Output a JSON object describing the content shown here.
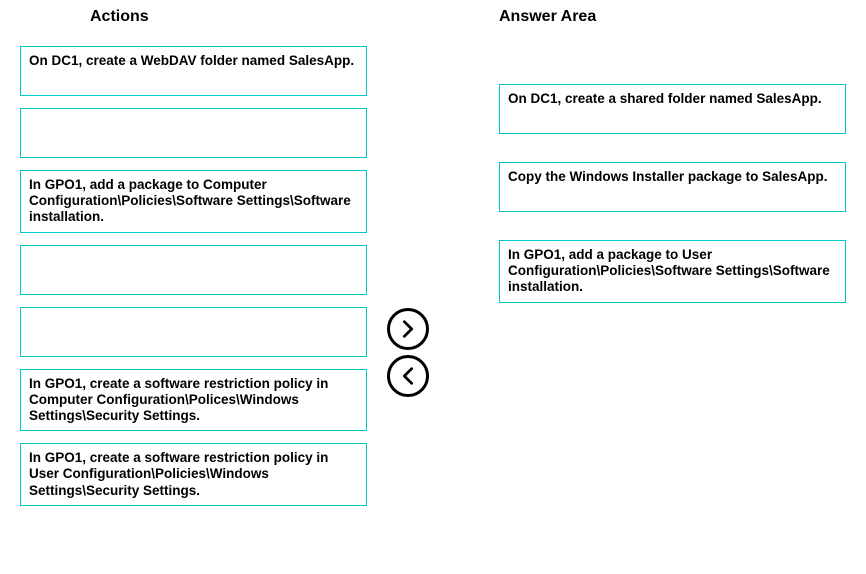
{
  "headers": {
    "actions": "Actions",
    "answer": "Answer Area"
  },
  "actions_items": [
    {
      "text": "On DC1, create a WebDAV folder named SalesApp.",
      "empty": false
    },
    {
      "text": "",
      "empty": true
    },
    {
      "text": "In GPO1, add a package to Computer Configuration\\Policies\\Software Settings\\Software installation.",
      "empty": false
    },
    {
      "text": "",
      "empty": true
    },
    {
      "text": "",
      "empty": true
    },
    {
      "text": "In GPO1, create a software restriction policy in Computer Configuration\\Polices\\Windows Settings\\Security Settings.",
      "empty": false
    },
    {
      "text": "In GPO1, create a software restriction policy in User Configuration\\Policies\\Windows Settings\\Security Settings.",
      "empty": false
    }
  ],
  "answer_items": [
    {
      "text": "On DC1, create a shared folder named SalesApp."
    },
    {
      "text": "Copy the Windows Installer package to SalesApp."
    },
    {
      "text": "In GPO1, add a package to User Configuration\\Policies\\Software Settings\\Software installation."
    }
  ],
  "style": {
    "box_border_color": "#00c8c8",
    "arrow_border_color": "#000000",
    "background_color": "#ffffff",
    "box_min_height": 50,
    "font_size_header": 16,
    "font_size_item": 13.5
  }
}
